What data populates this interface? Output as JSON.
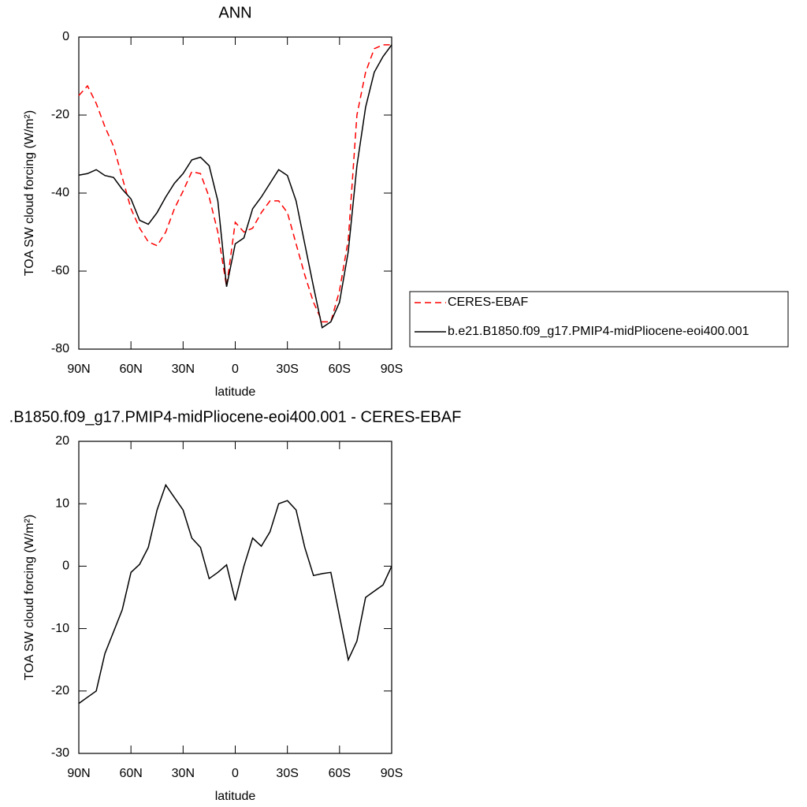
{
  "chart_data": [
    {
      "type": "line",
      "title": "ANN",
      "xlabel": "latitude",
      "ylabel": "TOA SW cloud forcing (W/m²)",
      "x": [
        90,
        85,
        80,
        75,
        70,
        65,
        60,
        55,
        50,
        45,
        40,
        35,
        30,
        25,
        20,
        15,
        10,
        5,
        0,
        -5,
        -10,
        -15,
        -20,
        -25,
        -30,
        -35,
        -40,
        -45,
        -50,
        -55,
        -60,
        -65,
        -70,
        -75,
        -80,
        -85,
        -90
      ],
      "xlim": [
        90,
        -90
      ],
      "xticks": [
        {
          "value": 90,
          "label": "90N"
        },
        {
          "value": 60,
          "label": "60N"
        },
        {
          "value": 30,
          "label": "30N"
        },
        0,
        {
          "value": -30,
          "label": "30S"
        },
        {
          "value": -60,
          "label": "60S"
        },
        {
          "value": -90,
          "label": "90S"
        }
      ],
      "ylim": [
        -80,
        0
      ],
      "yticks": [
        0,
        -20,
        -40,
        -60,
        -80
      ],
      "grid": false,
      "legend": "right",
      "series": [
        {
          "name": "CERES-EBAF",
          "color": "#ff0000",
          "linestyle": "dashed",
          "values": [
            -15,
            -12.5,
            -17,
            -23,
            -28,
            -36,
            -44,
            -49,
            -52.5,
            -53.5,
            -50,
            -44,
            -39.5,
            -34.5,
            -35,
            -41,
            -50,
            -64,
            -47.5,
            -50,
            -49,
            -45,
            -42,
            -42,
            -45,
            -53,
            -61,
            -68,
            -73,
            -73,
            -65,
            -52,
            -20,
            -9,
            -3,
            -2,
            -2
          ]
        },
        {
          "name": "b.e21.B1850.f09_g17.PMIP4-midPliocene-eoi400.001",
          "color": "#000000",
          "linestyle": "solid",
          "values": [
            -35.4,
            -35,
            -34,
            -35.5,
            -36,
            -39,
            -41.5,
            -47,
            -48,
            -45,
            -41,
            -37.5,
            -35,
            -31.5,
            -30.8,
            -33,
            -42,
            -64,
            -53,
            -51.5,
            -44,
            -41,
            -37.5,
            -34,
            -35.5,
            -42,
            -53,
            -64,
            -74.5,
            -73,
            -68,
            -55,
            -33,
            -18,
            -9,
            -5,
            -2
          ]
        }
      ]
    },
    {
      "type": "line",
      "title": ".B1850.f09_g17.PMIP4-midPliocene-eoi400.001 - CERES-EBAF",
      "xlabel": "latitude",
      "ylabel": "TOA SW cloud forcing (W/m²)",
      "x": [
        90,
        85,
        80,
        75,
        70,
        65,
        60,
        55,
        50,
        45,
        40,
        35,
        30,
        25,
        20,
        15,
        10,
        5,
        0,
        -5,
        -10,
        -15,
        -20,
        -25,
        -30,
        -35,
        -40,
        -45,
        -50,
        -55,
        -60,
        -65,
        -70,
        -75,
        -80,
        -85,
        -90
      ],
      "xlim": [
        90,
        -90
      ],
      "xticks": [
        {
          "value": 90,
          "label": "90N"
        },
        {
          "value": 60,
          "label": "60N"
        },
        {
          "value": 30,
          "label": "30N"
        },
        0,
        {
          "value": -30,
          "label": "30S"
        },
        {
          "value": -60,
          "label": "60S"
        },
        {
          "value": -90,
          "label": "90S"
        }
      ],
      "ylim": [
        -30,
        20
      ],
      "yticks": [
        20,
        10,
        0,
        -10,
        -20,
        -30
      ],
      "grid": false,
      "color": "#000000",
      "linestyle": "solid",
      "values": [
        -22,
        -21,
        -20,
        -14,
        -10.5,
        -7,
        -1,
        0.3,
        3,
        9,
        13,
        11,
        9,
        4.5,
        3,
        -2,
        -1,
        0.2,
        -5.5,
        0,
        4.5,
        3.2,
        5.5,
        10,
        10.5,
        9,
        3,
        -1.5,
        -1.2,
        -1,
        -8,
        -15,
        -12,
        -5,
        -4,
        -3,
        0
      ]
    }
  ]
}
